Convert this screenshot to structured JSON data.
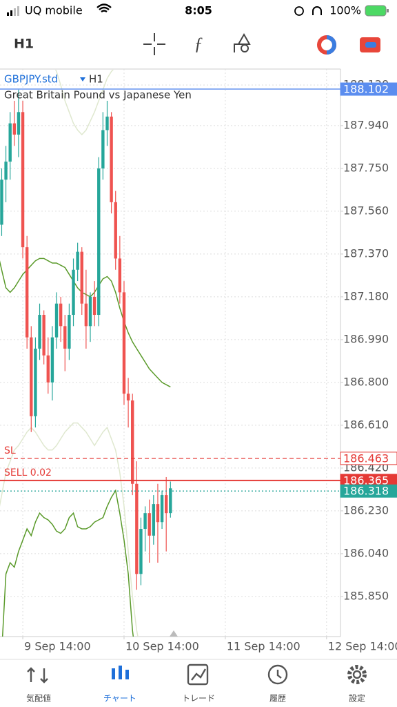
{
  "status_bar": {
    "carrier": "UQ mobile",
    "time": "8:05",
    "battery": "100%"
  },
  "toolbar": {
    "timeframe": "H1"
  },
  "chart_data": {
    "type": "candlestick",
    "symbol": "GBPJPY.std",
    "timeframe": "H1",
    "description": "Great Britain Pound vs Japanese Yen",
    "up_color": "#26a69a",
    "down_color": "#ef5350",
    "grid": true,
    "xlim": [
      0.6,
      81.3
    ],
    "xticks": [
      {
        "value": 6,
        "label": "9 Sep 14:00"
      },
      {
        "value": 30,
        "label": "10 Sep 14:00"
      },
      {
        "value": 54,
        "label": "11 Sep 14:00"
      },
      {
        "value": 78,
        "label": "12 Sep 14:00"
      }
    ],
    "ylim": [
      185.672,
      188.191
    ],
    "yticks": [
      {
        "value": 188.12,
        "label": "188.120"
      },
      {
        "value": 187.94,
        "label": "187.940"
      },
      {
        "value": 187.75,
        "label": "187.750"
      },
      {
        "value": 187.56,
        "label": "187.560"
      },
      {
        "value": 187.37,
        "label": "187.370"
      },
      {
        "value": 187.18,
        "label": "187.180"
      },
      {
        "value": 186.99,
        "label": "186.990"
      },
      {
        "value": 186.8,
        "label": "186.800"
      },
      {
        "value": 186.61,
        "label": "186.610"
      },
      {
        "value": 186.42,
        "label": "186.420"
      },
      {
        "value": 186.23,
        "label": "186.230"
      },
      {
        "value": 186.04,
        "label": "186.040"
      },
      {
        "value": 185.85,
        "label": "185.850"
      }
    ],
    "open": [
      187.45,
      187.5,
      187.7,
      187.78,
      187.95,
      187.9,
      188.0,
      187.4,
      187.0,
      186.65,
      186.95,
      187.1,
      186.92,
      186.8,
      187.0,
      187.15,
      187.05,
      186.95,
      187.1,
      187.3,
      187.38,
      187.15,
      187.05,
      187.18,
      187.1,
      187.75,
      187.92,
      187.98,
      187.6,
      187.35,
      187.2,
      186.75,
      186.72,
      186.35,
      185.95,
      186.15,
      186.22,
      186.12,
      186.26,
      186.18,
      186.3,
      186.22
    ],
    "high": [
      187.55,
      187.75,
      187.85,
      188.0,
      188.05,
      188.1,
      188.05,
      187.45,
      187.05,
      187.0,
      187.15,
      187.12,
      187.0,
      187.05,
      187.2,
      187.18,
      187.1,
      187.15,
      187.35,
      187.42,
      187.4,
      187.3,
      187.2,
      187.25,
      187.8,
      188.0,
      188.05,
      188.0,
      187.65,
      187.45,
      187.25,
      186.82,
      186.75,
      186.45,
      186.2,
      186.25,
      186.28,
      186.3,
      186.35,
      186.32,
      186.38,
      186.36
    ],
    "low": [
      187.3,
      187.45,
      187.6,
      187.7,
      187.85,
      187.8,
      187.35,
      186.95,
      186.58,
      186.6,
      186.9,
      186.88,
      186.75,
      186.72,
      186.95,
      186.98,
      186.85,
      186.9,
      187.05,
      187.25,
      187.1,
      186.95,
      186.98,
      187.05,
      187.05,
      187.7,
      187.85,
      187.55,
      187.3,
      187.15,
      186.7,
      186.6,
      186.3,
      185.88,
      185.9,
      186.05,
      186.0,
      186.08,
      186.0,
      186.15,
      186.05,
      186.2
    ],
    "close": [
      187.5,
      187.7,
      187.78,
      187.95,
      187.9,
      188.0,
      187.4,
      187.0,
      186.65,
      186.95,
      187.1,
      186.92,
      186.8,
      187.0,
      187.15,
      187.05,
      186.95,
      187.1,
      187.3,
      187.38,
      187.15,
      187.05,
      187.18,
      187.1,
      187.75,
      187.92,
      187.98,
      187.6,
      187.35,
      187.2,
      186.75,
      186.72,
      186.35,
      185.95,
      186.15,
      186.22,
      186.12,
      186.26,
      186.18,
      186.3,
      186.22,
      186.33
    ],
    "indicators": [
      {
        "color": "#5a9a2a",
        "values": [
          187.38,
          187.3,
          187.22,
          187.2,
          187.22,
          187.25,
          187.28,
          187.3,
          187.32,
          187.34,
          187.35,
          187.35,
          187.34,
          187.33,
          187.33,
          187.32,
          187.31,
          187.28,
          187.25,
          187.22,
          187.2,
          187.19,
          187.18,
          187.2,
          187.23,
          187.26,
          187.27,
          187.25,
          187.2,
          187.13,
          187.07,
          187.02,
          186.98,
          186.95,
          186.92,
          186.89,
          186.86,
          186.84,
          186.82,
          186.8,
          186.79,
          186.78
        ]
      },
      {
        "color": "#5a9a2a",
        "values": [
          185.4,
          185.6,
          185.95,
          186.0,
          185.98,
          186.05,
          186.1,
          186.15,
          186.12,
          186.18,
          186.22,
          186.2,
          186.19,
          186.17,
          186.14,
          186.13,
          186.15,
          186.2,
          186.22,
          186.16,
          186.15,
          186.15,
          186.16,
          186.18,
          186.19,
          186.2,
          186.25,
          186.29,
          186.32,
          186.22,
          186.1,
          185.95,
          185.7,
          185.55,
          null,
          null,
          null,
          null,
          null,
          null,
          null,
          null
        ]
      },
      {
        "color": "#dfe8cf",
        "values": [
          188.3,
          188.3,
          188.28,
          188.25,
          188.22,
          188.2,
          188.22,
          188.25,
          188.28,
          188.3,
          188.3,
          188.28,
          188.25,
          188.22,
          188.18,
          188.12,
          188.05,
          188.0,
          187.95,
          187.92,
          187.9,
          187.92,
          187.96,
          188.0,
          188.05,
          188.1,
          188.15,
          188.18,
          188.2,
          188.22,
          188.25,
          188.28,
          188.3,
          188.35,
          188.4,
          null,
          null,
          null,
          null,
          null,
          null,
          null
        ]
      },
      {
        "color": "#dfe8cf",
        "values": [
          186.2,
          186.3,
          186.4,
          186.45,
          186.5,
          186.52,
          186.55,
          186.58,
          186.6,
          186.58,
          186.55,
          186.52,
          186.5,
          186.5,
          186.52,
          186.55,
          186.58,
          186.6,
          186.62,
          186.62,
          186.6,
          186.58,
          186.55,
          186.52,
          186.55,
          186.58,
          186.6,
          186.55,
          186.5,
          186.4,
          186.25,
          186.05,
          185.85,
          185.7,
          185.6,
          null,
          null,
          null,
          null,
          null,
          null,
          null
        ]
      }
    ],
    "levels": [
      {
        "value": 188.102,
        "color": "#5b8def",
        "style": "solid",
        "tag": "fill"
      },
      {
        "label": "SL",
        "value": 186.463,
        "color": "#e53935",
        "style": "dashed",
        "tag": "outline"
      },
      {
        "label": "SELL 0.02",
        "value": 186.365,
        "color": "#e53935",
        "style": "solid",
        "tag": "fill"
      },
      {
        "value": 186.318,
        "color": "#26a69a",
        "style": "dotted",
        "tag": "fill"
      }
    ]
  },
  "nav": [
    "気配値",
    "チャート",
    "トレード",
    "履歴",
    "設定"
  ]
}
